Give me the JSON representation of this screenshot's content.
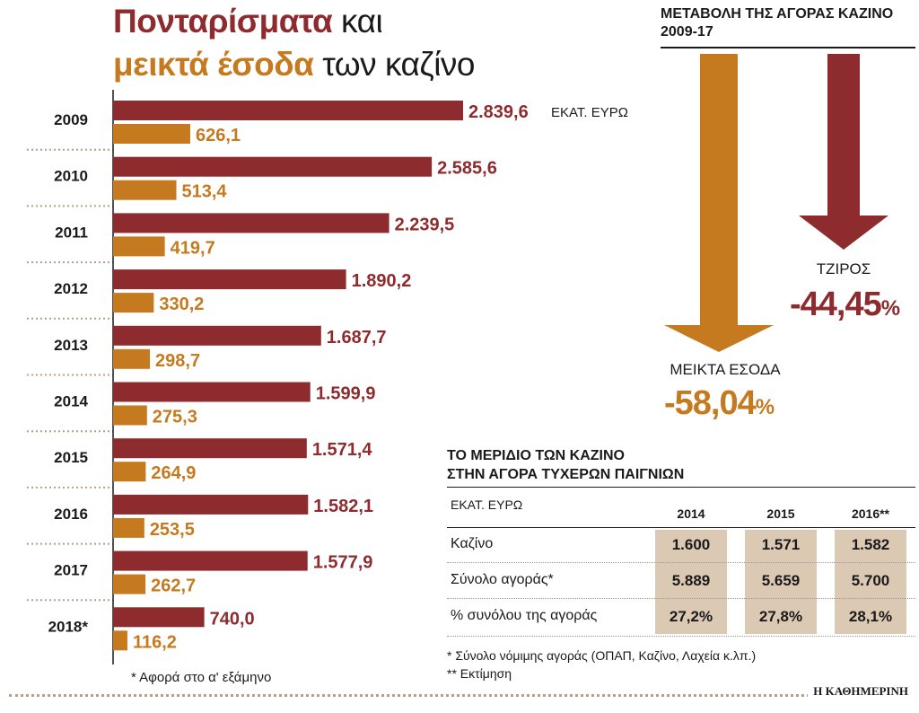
{
  "title": {
    "line1_accent": "Πονταρίσματα",
    "line1_rest": "και",
    "line2_accent": "μεικτά έσοδα",
    "line2_rest": "των καζίνο"
  },
  "colors": {
    "wagers": "#8e2b2e",
    "revenue": "#c57a1f",
    "table_cell": "#dcc9b4"
  },
  "chart_data": {
    "type": "bar",
    "orientation": "horizontal",
    "categories": [
      "2009",
      "2010",
      "2011",
      "2012",
      "2013",
      "2014",
      "2015",
      "2016",
      "2017",
      "2018*"
    ],
    "series": [
      {
        "values": [
          2839.6,
          2585.6,
          2239.5,
          1890.2,
          1687.7,
          1599.9,
          1571.4,
          1582.1,
          1577.9,
          740.0
        ],
        "labels": [
          "2.839,6",
          "2.585,6",
          "2.239,5",
          "1.890,2",
          "1.687,7",
          "1.599,9",
          "1.571,4",
          "1.582,1",
          "1.577,9",
          "740,0"
        ]
      },
      {
        "values": [
          626.1,
          513.4,
          419.7,
          330.2,
          298.7,
          275.3,
          264.9,
          253.5,
          262.7,
          116.2
        ],
        "labels": [
          "626,1",
          "513,4",
          "419,7",
          "330,2",
          "298,7",
          "275,3",
          "264,9",
          "253,5",
          "262,7",
          "116,2"
        ]
      }
    ],
    "unit_label": "ΕΚΑΤ. ΕΥΡΩ"
  },
  "footnote": "* Αφορά στο α' εξάμηνο",
  "change": {
    "heading": "ΜΕΤΑΒΟΛΗ ΤΗΣ ΑΓΟΡΑΣ ΚΑΖΙΝΟ 2009-17",
    "turnover_label": "ΤΖΙΡΟΣ",
    "turnover_value": "-44,45",
    "revenue_label": "ΜΕΙΚΤΑ ΕΣΟΔΑ",
    "revenue_value": "-58,04",
    "pct_sign": "%"
  },
  "share": {
    "title_line1": "ΤΟ ΜΕΡΙΔΙΟ ΤΩΝ ΚΑΖΙΝΟ",
    "title_line2": "ΣΤΗΝ ΑΓΟΡΑ ΤΥΧΕΡΩΝ ΠΑΙΓΝΙΩΝ",
    "unit_header": "ΕΚΑΤ. ΕΥΡΩ",
    "columns": [
      "2014",
      "2015",
      "2016**"
    ],
    "rows": [
      {
        "label": "Καζίνο",
        "values": [
          "1.600",
          "1.571",
          "1.582"
        ]
      },
      {
        "label": "Σύνολο αγοράς*",
        "values": [
          "5.889",
          "5.659",
          "5.700"
        ]
      },
      {
        "label": "% συνόλου της αγοράς",
        "values": [
          "27,2%",
          "27,8%",
          "28,1%"
        ]
      }
    ],
    "note1": "* Σύνολο νόμιμης αγοράς (ΟΠΑΠ, Καζίνο, Λαχεία κ.λπ.)",
    "note2": "** Εκτίμηση"
  },
  "brand": "Η ΚΑΘΗΜΕΡΙΝΗ"
}
